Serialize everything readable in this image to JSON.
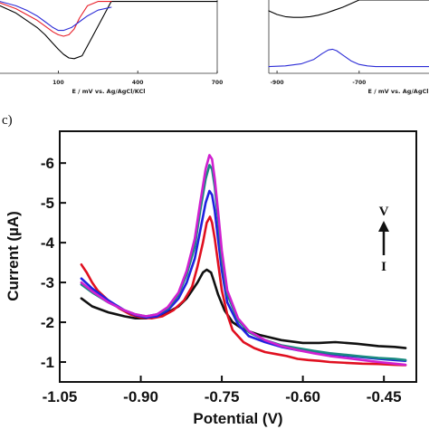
{
  "chart_data": [
    {
      "panel": "top-left (partial)",
      "type": "line",
      "xlabel": "E / mV vs. Ag/AgCl/KCl",
      "ylabel": "",
      "xlim": [
        -120,
        700
      ],
      "ylim": [
        0,
        1
      ],
      "xticks": [
        "100",
        "400",
        "700"
      ],
      "xtick_values": [
        100,
        400,
        700
      ],
      "colors": [
        "#000000",
        "#e8202a",
        "#2b2bd6"
      ],
      "series": [
        {
          "color": "#000000",
          "x": [
            -120,
            -60,
            -20,
            20,
            50,
            80,
            100,
            120,
            140,
            160,
            190,
            230,
            300,
            400,
            500,
            600,
            700
          ],
          "y": [
            0.92,
            0.82,
            0.72,
            0.62,
            0.52,
            0.4,
            0.32,
            0.25,
            0.2,
            0.19,
            0.23,
            0.5,
            0.98,
            0.98,
            0.98,
            0.98,
            0.98
          ]
        },
        {
          "color": "#e8202a",
          "x": [
            -120,
            -60,
            -20,
            20,
            50,
            80,
            100,
            120,
            140,
            160,
            180,
            210,
            250,
            300
          ],
          "y": [
            0.96,
            0.88,
            0.8,
            0.72,
            0.64,
            0.56,
            0.52,
            0.5,
            0.52,
            0.6,
            0.75,
            0.92,
            0.98,
            0.98
          ]
        },
        {
          "color": "#2b2bd6",
          "x": [
            -120,
            -60,
            -20,
            20,
            50,
            80,
            100,
            120,
            150,
            180,
            210,
            250,
            300
          ],
          "y": [
            0.98,
            0.92,
            0.86,
            0.78,
            0.7,
            0.62,
            0.58,
            0.58,
            0.62,
            0.7,
            0.78,
            0.86,
            0.9
          ]
        }
      ]
    },
    {
      "panel": "top-right (partial)",
      "type": "line",
      "xlabel": "E / mV vs. Ag/AgCl",
      "ylabel": "",
      "xlim": [
        -920,
        -530
      ],
      "ylim": [
        0,
        1
      ],
      "xticks": [
        "-900",
        "-700"
      ],
      "xtick_values": [
        -900,
        -700
      ],
      "colors": [
        "#000000",
        "#2b2bd6"
      ],
      "series": [
        {
          "color": "#000000",
          "x": [
            -920,
            -900,
            -880,
            -860,
            -840,
            -820,
            -800,
            -780,
            -760,
            -740,
            -720,
            -700,
            -680,
            -660,
            -640,
            -620,
            -600,
            -580,
            -560,
            -540,
            -530
          ],
          "y": [
            0.85,
            0.8,
            0.77,
            0.76,
            0.76,
            0.77,
            0.79,
            0.82,
            0.86,
            0.9,
            0.95,
            1.0,
            1.0,
            1.0,
            1.0,
            1.0,
            1.0,
            1.0,
            1.0,
            1.0,
            1.0
          ]
        },
        {
          "color": "#2b2bd6",
          "x": [
            -920,
            -880,
            -840,
            -810,
            -790,
            -775,
            -765,
            -755,
            -740,
            -720,
            -700,
            -680,
            -660,
            -630,
            -600,
            -570,
            -540,
            -530
          ],
          "y": [
            0.08,
            0.09,
            0.12,
            0.18,
            0.26,
            0.31,
            0.32,
            0.3,
            0.24,
            0.16,
            0.11,
            0.09,
            0.08,
            0.08,
            0.08,
            0.08,
            0.08,
            0.08
          ]
        }
      ]
    },
    {
      "panel": "c)",
      "type": "line",
      "xlabel": "Potential (V)",
      "ylabel": "Current (µA)",
      "xlim": [
        -1.05,
        -0.39
      ],
      "ylim": [
        -0.5,
        -6.8
      ],
      "xticks": [
        "-1.05",
        "-0.90",
        "-0.75",
        "-0.60",
        "-0.45"
      ],
      "xtick_values": [
        -1.05,
        -0.9,
        -0.75,
        -0.6,
        -0.45
      ],
      "yticks": [
        "-1",
        "-2",
        "-3",
        "-4",
        "-5",
        "-6"
      ],
      "ytick_values": [
        -1,
        -2,
        -3,
        -4,
        -5,
        -6
      ],
      "annotation_top": "V",
      "annotation_bottom": "I",
      "colors": [
        "#111111",
        "#e01020",
        "#2020e0",
        "#1a8a80",
        "#d020d0"
      ],
      "series": [
        {
          "color": "#111111",
          "x": [
            -1.01,
            -0.99,
            -0.96,
            -0.93,
            -0.91,
            -0.89,
            -0.87,
            -0.85,
            -0.83,
            -0.815,
            -0.805,
            -0.795,
            -0.785,
            -0.778,
            -0.77,
            -0.765,
            -0.757,
            -0.745,
            -0.73,
            -0.71,
            -0.68,
            -0.64,
            -0.6,
            -0.57,
            -0.54,
            -0.5,
            -0.46,
            -0.43,
            -0.41
          ],
          "y": [
            -2.6,
            -2.4,
            -2.25,
            -2.15,
            -2.1,
            -2.1,
            -2.15,
            -2.25,
            -2.4,
            -2.6,
            -2.8,
            -3.0,
            -3.25,
            -3.32,
            -3.25,
            -3.05,
            -2.7,
            -2.3,
            -2.0,
            -1.82,
            -1.68,
            -1.55,
            -1.48,
            -1.48,
            -1.5,
            -1.46,
            -1.4,
            -1.38,
            -1.35
          ]
        },
        {
          "color": "#e01020",
          "x": [
            -1.01,
            -1.0,
            -0.99,
            -0.98,
            -0.96,
            -0.94,
            -0.92,
            -0.9,
            -0.88,
            -0.86,
            -0.84,
            -0.82,
            -0.805,
            -0.795,
            -0.785,
            -0.778,
            -0.772,
            -0.768,
            -0.763,
            -0.757,
            -0.75,
            -0.74,
            -0.73,
            -0.71,
            -0.69,
            -0.67,
            -0.65,
            -0.63,
            -0.61,
            -0.59,
            -0.57,
            -0.55,
            -0.52,
            -0.49,
            -0.46,
            -0.43,
            -0.41
          ],
          "y": [
            -3.45,
            -3.25,
            -3.0,
            -2.8,
            -2.55,
            -2.35,
            -2.2,
            -2.12,
            -2.1,
            -2.15,
            -2.3,
            -2.55,
            -2.9,
            -3.4,
            -4.0,
            -4.5,
            -4.65,
            -4.5,
            -4.1,
            -3.5,
            -2.8,
            -2.2,
            -1.8,
            -1.5,
            -1.35,
            -1.25,
            -1.2,
            -1.15,
            -1.08,
            -1.05,
            -1.03,
            -1.0,
            -0.98,
            -0.96,
            -0.95,
            -0.93,
            -0.92
          ]
        },
        {
          "color": "#2020e0",
          "x": [
            -1.01,
            -0.99,
            -0.96,
            -0.93,
            -0.91,
            -0.89,
            -0.87,
            -0.85,
            -0.83,
            -0.815,
            -0.8,
            -0.79,
            -0.78,
            -0.773,
            -0.768,
            -0.763,
            -0.757,
            -0.75,
            -0.74,
            -0.72,
            -0.7,
            -0.67,
            -0.64,
            -0.61,
            -0.58,
            -0.55,
            -0.52,
            -0.49,
            -0.46,
            -0.43,
            -0.41
          ],
          "y": [
            -3.1,
            -2.85,
            -2.55,
            -2.3,
            -2.18,
            -2.12,
            -2.15,
            -2.3,
            -2.6,
            -3.0,
            -3.6,
            -4.3,
            -5.0,
            -5.3,
            -5.2,
            -4.8,
            -4.1,
            -3.3,
            -2.5,
            -1.95,
            -1.65,
            -1.5,
            -1.38,
            -1.3,
            -1.24,
            -1.2,
            -1.16,
            -1.12,
            -1.08,
            -1.05,
            -1.03
          ]
        },
        {
          "color": "#1a8a80",
          "x": [
            -1.01,
            -0.99,
            -0.96,
            -0.93,
            -0.91,
            -0.89,
            -0.87,
            -0.85,
            -0.83,
            -0.815,
            -0.8,
            -0.79,
            -0.78,
            -0.773,
            -0.768,
            -0.763,
            -0.757,
            -0.75,
            -0.74,
            -0.72,
            -0.7,
            -0.67,
            -0.64,
            -0.61,
            -0.58,
            -0.55,
            -0.52,
            -0.49,
            -0.46,
            -0.43,
            -0.41
          ],
          "y": [
            -2.95,
            -2.75,
            -2.5,
            -2.3,
            -2.2,
            -2.15,
            -2.2,
            -2.35,
            -2.7,
            -3.2,
            -3.9,
            -4.8,
            -5.6,
            -5.95,
            -5.85,
            -5.4,
            -4.6,
            -3.6,
            -2.7,
            -2.05,
            -1.75,
            -1.55,
            -1.42,
            -1.35,
            -1.28,
            -1.22,
            -1.18,
            -1.14,
            -1.1,
            -1.08,
            -1.05
          ]
        },
        {
          "color": "#d020d0",
          "x": [
            -1.01,
            -0.99,
            -0.96,
            -0.93,
            -0.91,
            -0.89,
            -0.87,
            -0.85,
            -0.83,
            -0.815,
            -0.8,
            -0.79,
            -0.78,
            -0.773,
            -0.768,
            -0.763,
            -0.757,
            -0.75,
            -0.74,
            -0.72,
            -0.7,
            -0.67,
            -0.64,
            -0.61,
            -0.58,
            -0.55,
            -0.52,
            -0.49,
            -0.46,
            -0.43,
            -0.41
          ],
          "y": [
            -3.0,
            -2.78,
            -2.5,
            -2.3,
            -2.2,
            -2.15,
            -2.2,
            -2.38,
            -2.75,
            -3.3,
            -4.1,
            -5.0,
            -5.85,
            -6.2,
            -6.1,
            -5.6,
            -4.8,
            -3.8,
            -2.8,
            -2.1,
            -1.78,
            -1.55,
            -1.4,
            -1.3,
            -1.22,
            -1.15,
            -1.1,
            -1.05,
            -1.0,
            -0.96,
            -0.93
          ]
        }
      ]
    }
  ],
  "panel_tag": "c)"
}
